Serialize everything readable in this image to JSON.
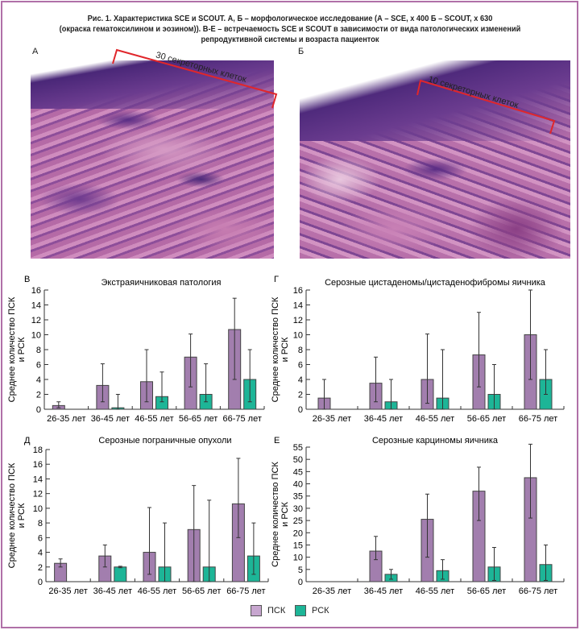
{
  "caption": {
    "line1": "Рис. 1. Характеристика SCE и SCOUT. А, Б – морфологическое исследование (А – SCE, х 400 Б – SCOUT, х 630",
    "line2": "(окраска гематоксилином и эозином)). В-Е – встречаемость SCE и SCOUT в зависимости от вида патологических изменений",
    "line3": "репродуктивной системы и возраста пациенток"
  },
  "images": {
    "a": {
      "label": "А",
      "annotation": "30 секреторных клеток"
    },
    "b": {
      "label": "Б",
      "annotation": "10 секреторных клеток"
    }
  },
  "colors": {
    "psk": "#a27eae",
    "rsk": "#1db597",
    "frame": "#b070a8",
    "bracket": "#e0262b"
  },
  "legend": {
    "psk": "ПСК",
    "rsk": "РСК"
  },
  "chart_data": [
    {
      "panel": "В",
      "type": "bar",
      "title": "Экстраяичниковая патология",
      "ylabel": "Среднее количество ПСК и РСК",
      "ylim": [
        0,
        16
      ],
      "ystep": 2,
      "categories": [
        "26-35 лет",
        "36-45 лет",
        "46-55 лет",
        "56-65 лет",
        "66-75 лет"
      ],
      "series": [
        {
          "name": "ПСК",
          "values": [
            0.5,
            3.2,
            3.7,
            7,
            10.7
          ],
          "err": [
            [
              0.2,
              1
            ],
            [
              1,
              6.1
            ],
            [
              1,
              8
            ],
            [
              3,
              10.1
            ],
            [
              4,
              14.9
            ]
          ]
        },
        {
          "name": "РСК",
          "values": [
            null,
            0.2,
            1.7,
            2,
            4
          ],
          "err": [
            null,
            [
              0,
              2
            ],
            [
              1,
              5
            ],
            [
              1,
              6.1
            ],
            [
              1,
              8
            ]
          ]
        }
      ]
    },
    {
      "panel": "Г",
      "type": "bar",
      "title": "Серозные цистаденомы/цистаденофибромы яичника",
      "ylabel": "Среднее количество ПСК и РСК",
      "ylim": [
        0,
        16
      ],
      "ystep": 2,
      "categories": [
        "26-35 лет",
        "36-45 лет",
        "46-55 лет",
        "56-65 лет",
        "66-75 лет"
      ],
      "series": [
        {
          "name": "ПСК",
          "values": [
            1.5,
            3.5,
            4,
            7.3,
            10
          ],
          "err": [
            [
              0,
              4
            ],
            [
              1,
              7
            ],
            [
              0.8,
              10.1
            ],
            [
              3,
              13
            ],
            [
              4,
              16
            ]
          ]
        },
        {
          "name": "РСК",
          "values": [
            null,
            1,
            1.5,
            2,
            4
          ],
          "err": [
            null,
            [
              0,
              4
            ],
            [
              0,
              8
            ],
            [
              0,
              6
            ],
            [
              2,
              8
            ]
          ]
        }
      ]
    },
    {
      "panel": "Д",
      "type": "bar",
      "title": "Серозные пограничные опухоли",
      "ylabel": "Среднее количество ПСК и РСК",
      "ylim": [
        0,
        18
      ],
      "ystep": 2,
      "categories": [
        "26-35 лет",
        "36-45 лет",
        "46-55 лет",
        "56-65 лет",
        "66-75 лет"
      ],
      "series": [
        {
          "name": "ПСК",
          "values": [
            2.5,
            3.5,
            4,
            7.1,
            10.6
          ],
          "err": [
            [
              2,
              3.1
            ],
            [
              2,
              5
            ],
            [
              1,
              10.1
            ],
            [
              0,
              13.1
            ],
            [
              6,
              16.8
            ]
          ]
        },
        {
          "name": "РСК",
          "values": [
            null,
            2,
            2,
            2,
            3.5
          ],
          "err": [
            null,
            [
              1.9,
              2.1
            ],
            [
              0,
              8
            ],
            [
              0,
              11.1
            ],
            [
              1,
              8
            ]
          ]
        }
      ]
    },
    {
      "panel": "Е",
      "type": "bar",
      "title": "Серозные карциномы яичника",
      "ylabel": "Среднее количество ПСК и РСК",
      "ylim": [
        0,
        55
      ],
      "ystep": 5,
      "categories": [
        "26-35 лет",
        "36-45 лет",
        "46-55 лет",
        "56-65 лет",
        "66-75 лет"
      ],
      "series": [
        {
          "name": "ПСК",
          "values": [
            null,
            12.5,
            25.5,
            37,
            42.5
          ],
          "err": [
            null,
            [
              9,
              18.5
            ],
            [
              10,
              35.8
            ],
            [
              25,
              46.8
            ],
            [
              26,
              56.2
            ]
          ]
        },
        {
          "name": "РСК",
          "values": [
            null,
            3,
            4.5,
            6,
            7
          ],
          "err": [
            null,
            [
              1,
              5
            ],
            [
              1,
              9
            ],
            [
              0.5,
              14
            ],
            [
              0.5,
              15
            ]
          ]
        }
      ]
    }
  ]
}
